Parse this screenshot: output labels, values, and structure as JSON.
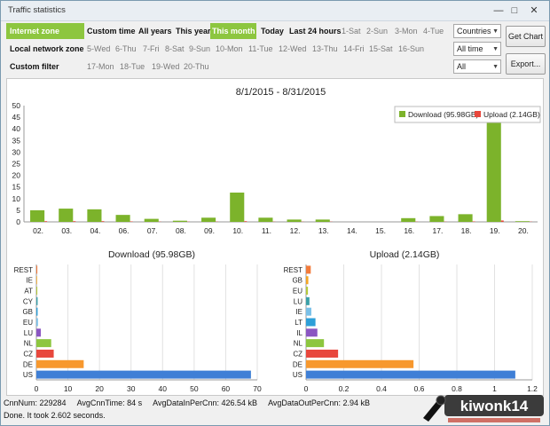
{
  "window": {
    "title": "Traffic statistics"
  },
  "toolbar": {
    "zones": [
      "Internet zone",
      "Local network zone",
      "Custom filter"
    ],
    "periods": [
      "Custom time",
      "All years",
      "This year",
      "This month",
      "Today",
      "Last 24 hours"
    ],
    "days_row1": [
      "1-Sat",
      "2-Sun",
      "3-Mon",
      "4-Tue"
    ],
    "days_row2": [
      "5-Wed",
      "6-Thu",
      "7-Fri",
      "8-Sat",
      "9-Sun",
      "10-Mon",
      "11-Tue",
      "12-Wed",
      "13-Thu",
      "14-Fri",
      "15-Sat",
      "16-Sun"
    ],
    "days_row3": [
      "17-Mon",
      "18-Tue",
      "19-Wed",
      "20-Thu"
    ],
    "combos": [
      "Countries",
      "All time",
      "All"
    ],
    "get_chart_label": "Get Chart",
    "export_label": "Export..."
  },
  "status": {
    "cnn_num": "CnnNum: 229284",
    "avg_cnn_time": "AvgCnnTime: 84 s",
    "avg_in": "AvgDataInPerCnn: 426.54 kB",
    "avg_out": "AvgDataOutPerCnn: 2.94 kB",
    "done": "Done. It took 2.602 seconds."
  },
  "watermark": {
    "brand": "kiwonk14"
  },
  "colors": {
    "accent": "#8dc63f",
    "download": "#7cb32b",
    "upload": "#e8473c"
  },
  "chart_data": [
    {
      "type": "bar",
      "title": "8/1/2015 - 8/31/2015",
      "categories": [
        "02.",
        "03.",
        "04.",
        "06.",
        "07.",
        "08.",
        "09.",
        "10.",
        "11.",
        "12.",
        "13.",
        "14.",
        "15.",
        "16.",
        "17.",
        "18.",
        "19.",
        "20."
      ],
      "series": [
        {
          "name": "Download (95.98GB)",
          "values": [
            5,
            5.7,
            5.4,
            3,
            1.3,
            0.5,
            1.8,
            12.6,
            1.8,
            1,
            1,
            0,
            0,
            1.6,
            2.5,
            3.3,
            45.5,
            0.3
          ],
          "color": "#7cb32b"
        },
        {
          "name": "Upload (2.14GB)",
          "values": [
            0.3,
            0.3,
            0.3,
            0.2,
            0.1,
            0.1,
            0.1,
            0.3,
            0.1,
            0.1,
            0.1,
            0,
            0,
            0.1,
            0.1,
            0.2,
            0.6,
            0.1
          ],
          "color": "#e8473c"
        }
      ],
      "yticks": [
        0,
        5,
        10,
        15,
        20,
        25,
        30,
        35,
        40,
        45,
        50
      ],
      "ylim": [
        0,
        50
      ],
      "legend": "top-right",
      "grid": false
    },
    {
      "type": "bar",
      "orientation": "horizontal",
      "title": "Download (95.98GB)",
      "categories": [
        "REST",
        "IE",
        "AT",
        "CY",
        "GB",
        "EU",
        "LU",
        "NL",
        "CZ",
        "DE",
        "US"
      ],
      "values": [
        0.3,
        0.2,
        0.3,
        0.4,
        0.4,
        0.5,
        1.4,
        4.7,
        5.5,
        15,
        68
      ],
      "colors": [
        "#f37b3b",
        "#f5a623",
        "#b6c93b",
        "#3aa0a8",
        "#2d9fd8",
        "#7ac0e8",
        "#8a56c2",
        "#8dc63f",
        "#e8473c",
        "#f7982e",
        "#3f7fd6"
      ],
      "xticks": [
        0,
        10,
        20,
        30,
        40,
        50,
        60,
        70
      ],
      "xlim": [
        0,
        70
      ],
      "grid": true
    },
    {
      "type": "bar",
      "orientation": "horizontal",
      "title": "Upload (2.14GB)",
      "categories": [
        "REST",
        "GB",
        "EU",
        "LU",
        "IE",
        "LT",
        "IL",
        "NL",
        "CZ",
        "DE",
        "US"
      ],
      "values": [
        0.025,
        0.012,
        0.01,
        0.018,
        0.028,
        0.05,
        0.06,
        0.095,
        0.17,
        0.57,
        1.11
      ],
      "colors": [
        "#f37b3b",
        "#f5a623",
        "#b6c93b",
        "#3aa0a8",
        "#7ac0e8",
        "#2d9fd8",
        "#8a56c2",
        "#8dc63f",
        "#e8473c",
        "#f7982e",
        "#3f7fd6"
      ],
      "xticks": [
        0,
        0.2,
        0.4,
        0.6,
        0.8,
        1,
        1.2
      ],
      "xlim": [
        0,
        1.2
      ],
      "grid": true
    }
  ]
}
